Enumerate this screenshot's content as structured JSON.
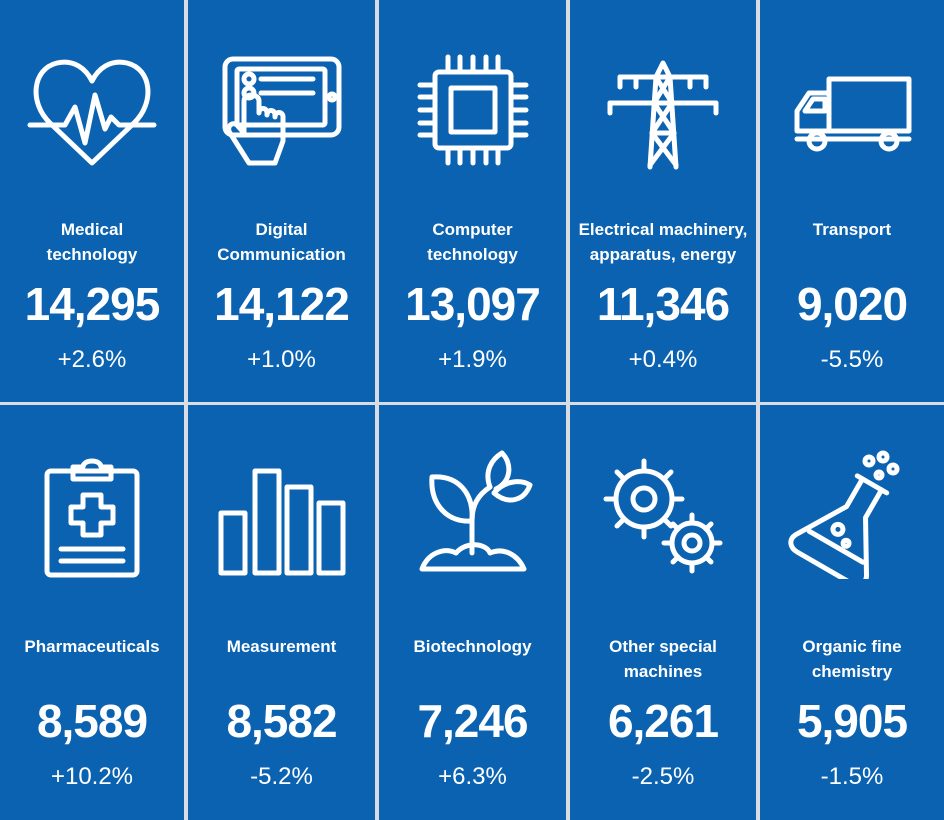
{
  "colors": {
    "tile_background": "#0a62b0",
    "text": "#ffffff",
    "divider": "#d9dde3"
  },
  "tiles": [
    {
      "label_line1": "Medical",
      "label_line2": "technology",
      "value": "14,295",
      "change": "+2.6%",
      "icon": "heart-pulse-icon"
    },
    {
      "label_line1": "Digital",
      "label_line2": "Communication",
      "value": "14,122",
      "change": "+1.0%",
      "icon": "tablet-touch-icon"
    },
    {
      "label_line1": "Computer",
      "label_line2": "technology",
      "value": "13,097",
      "change": "+1.9%",
      "icon": "microchip-icon"
    },
    {
      "label_line1": "Electrical machinery,",
      "label_line2": "apparatus, energy",
      "value": "11,346",
      "change": "+0.4%",
      "icon": "power-pylon-icon"
    },
    {
      "label_line1": "Transport",
      "label_line2": "",
      "value": "9,020",
      "change": "-5.5%",
      "icon": "truck-icon"
    },
    {
      "label_line1": "Pharmaceuticals",
      "label_line2": "",
      "value": "8,589",
      "change": "+10.2%",
      "icon": "medical-clipboard-icon"
    },
    {
      "label_line1": "Measurement",
      "label_line2": "",
      "value": "8,582",
      "change": "-5.2%",
      "icon": "bar-chart-icon"
    },
    {
      "label_line1": "Biotechnology",
      "label_line2": "",
      "value": "7,246",
      "change": "+6.3%",
      "icon": "sprout-icon"
    },
    {
      "label_line1": "Other special",
      "label_line2": "machines",
      "value": "6,261",
      "change": "-2.5%",
      "icon": "gears-icon"
    },
    {
      "label_line1": "Organic fine",
      "label_line2": "chemistry",
      "value": "5,905",
      "change": "-1.5%",
      "icon": "flask-icon"
    }
  ]
}
